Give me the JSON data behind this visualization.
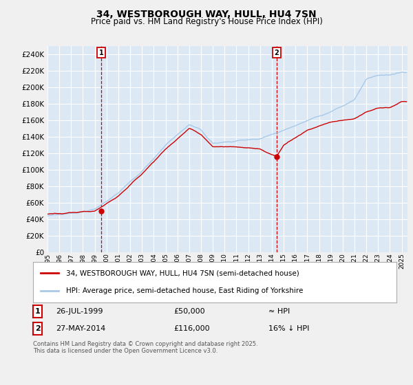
{
  "title": "34, WESTBOROUGH WAY, HULL, HU4 7SN",
  "subtitle": "Price paid vs. HM Land Registry's House Price Index (HPI)",
  "sale1_label": "26-JUL-1999",
  "sale1_price": 50000,
  "sale1_x": 1999.56,
  "sale1_hpi_note": "≈ HPI",
  "sale2_label": "27-MAY-2014",
  "sale2_price": 116000,
  "sale2_x": 2014.41,
  "sale2_hpi_note": "16% ↓ HPI",
  "legend_line1": "34, WESTBOROUGH WAY, HULL, HU4 7SN (semi-detached house)",
  "legend_line2": "HPI: Average price, semi-detached house, East Riding of Yorkshire",
  "footnote": "Contains HM Land Registry data © Crown copyright and database right 2025.\nThis data is licensed under the Open Government Licence v3.0.",
  "ylim": [
    0,
    250000
  ],
  "ytick_step": 20000,
  "hpi_color": "#a8c8e8",
  "price_color": "#cc0000",
  "plot_bg": "#dce9f5",
  "fig_bg": "#f0f0f0",
  "grid_color": "#ffffff",
  "dashed_color": "#cc0000",
  "box_color": "#cc0000",
  "xmin": 1995,
  "xmax": 2025.5
}
